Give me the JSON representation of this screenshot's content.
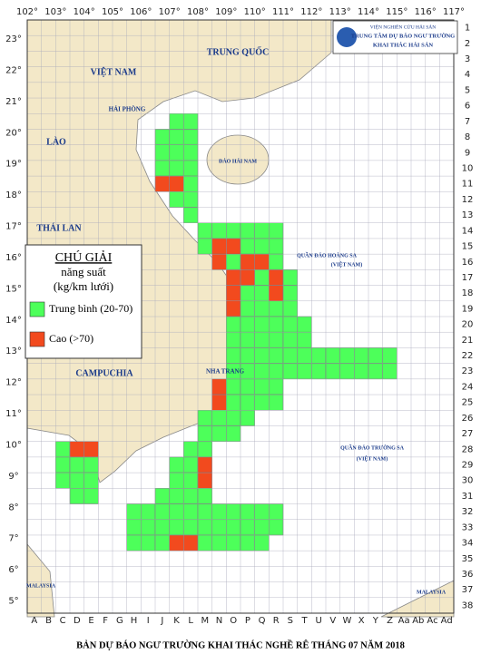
{
  "title": "BẢN DỰ BÁO NGƯ TRƯỜNG KHAI THÁC NGHỀ RÊ THÁNG 07 NĂM 2018",
  "header": {
    "line1": "VIỆN NGHIÊN CỨU HẢI SẢN",
    "line2": "TRUNG TÂM DỰ BÁO NGƯ TRƯỜNG",
    "line3": "KHAI THÁC HẢI SẢN"
  },
  "legend": {
    "title": "CHÚ GIẢI",
    "subtitle": "năng suất",
    "unit": "(kg/km lưới)",
    "items": [
      {
        "label": "Trung bình (20-70)",
        "color": "#4dff5a"
      },
      {
        "label": "Cao (>70)",
        "color": "#f24a1e"
      }
    ]
  },
  "longitudes": [
    "102°",
    "103°",
    "104°",
    "105°",
    "106°",
    "107°",
    "108°",
    "109°",
    "110°",
    "111°",
    "112°",
    "113°",
    "114°",
    "115°",
    "116°",
    "117°"
  ],
  "latitudes": [
    "23°",
    "22°",
    "21°",
    "20°",
    "19°",
    "18°",
    "17°",
    "16°",
    "15°",
    "14°",
    "13°",
    "12°",
    "11°",
    "10°",
    "9°",
    "8°",
    "7°",
    "6°",
    "5°"
  ],
  "columns": [
    "A",
    "B",
    "C",
    "D",
    "E",
    "F",
    "G",
    "H",
    "I",
    "J",
    "K",
    "L",
    "M",
    "N",
    "O",
    "P",
    "Q",
    "R",
    "S",
    "T",
    "U",
    "V",
    "W",
    "X",
    "Y",
    "Z",
    "Aa",
    "Ab",
    "Ac",
    "Ad"
  ],
  "rows": [
    "1",
    "2",
    "3",
    "4",
    "5",
    "6",
    "7",
    "8",
    "9",
    "10",
    "11",
    "12",
    "13",
    "14",
    "15",
    "16",
    "17",
    "18",
    "19",
    "20",
    "21",
    "22",
    "23",
    "24",
    "25",
    "26",
    "27",
    "28",
    "29",
    "30",
    "31",
    "32",
    "33",
    "34",
    "35",
    "36",
    "37",
    "38"
  ],
  "places": [
    {
      "label": "TRUNG QUỐC"
    },
    {
      "label": "VIỆT NAM"
    },
    {
      "label": "LÀO"
    },
    {
      "label": "THÁI LAN"
    },
    {
      "label": "CAMPUCHIA"
    },
    {
      "label": "HẢI PHÒNG"
    },
    {
      "label": "ĐẢO HẢI NAM"
    },
    {
      "label": "NHA TRANG"
    },
    {
      "label": "QUẦN ĐẢO HOÀNG SA"
    },
    {
      "label": "(VIỆT NAM)"
    },
    {
      "label": "QUẦN ĐẢO TRƯỜNG SA"
    },
    {
      "label": "(VIỆT NAM)"
    },
    {
      "label": "MALAYSIA"
    },
    {
      "label": "MALAYSIA"
    }
  ]
}
